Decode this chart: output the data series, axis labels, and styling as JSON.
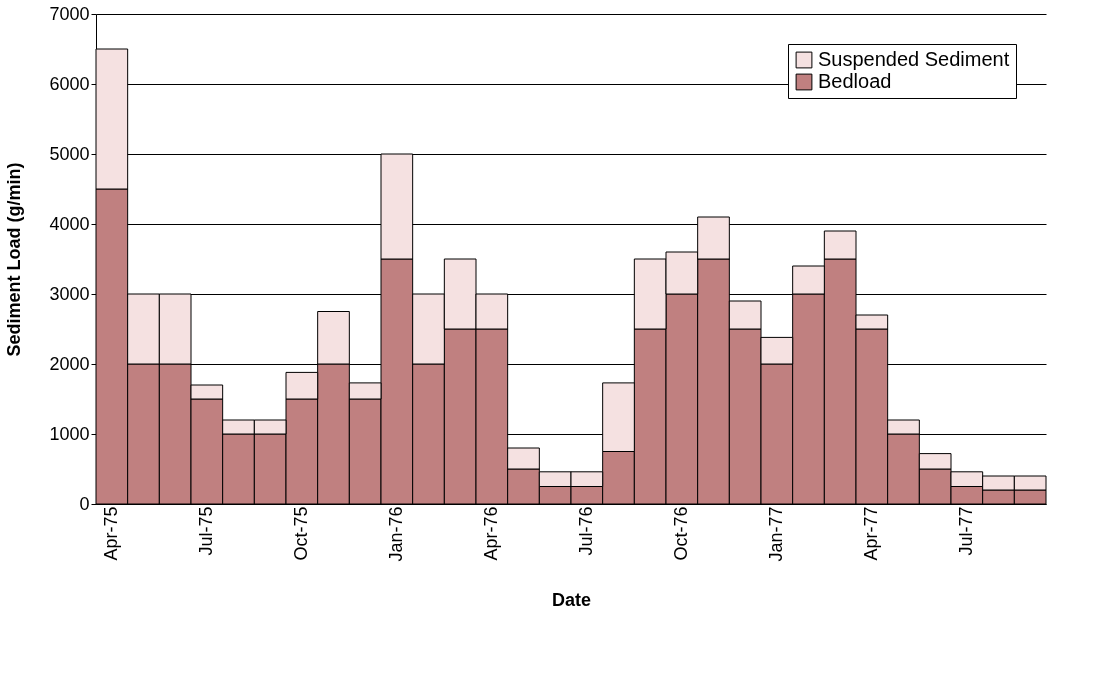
{
  "chart_data": {
    "type": "bar",
    "stacked": true,
    "xlabel": "Date",
    "ylabel": "Sediment Load (g/min)",
    "categories": [
      "Apr-75",
      null,
      null,
      "Jul-75",
      null,
      null,
      "Oct-75",
      null,
      null,
      "Jan-76",
      null,
      null,
      "Apr-76",
      null,
      null,
      "Jul-76",
      null,
      null,
      "Oct-76",
      null,
      null,
      "Jan-77",
      null,
      null,
      "Apr-77",
      null,
      null,
      "Jul-77",
      null,
      null
    ],
    "series": [
      {
        "name": "Bedload",
        "color": "#c08080",
        "values": [
          4500,
          2000,
          2000,
          1500,
          1000,
          1000,
          1500,
          2000,
          1500,
          3500,
          2000,
          2500,
          2500,
          500,
          250,
          250,
          750,
          2500,
          3000,
          3500,
          2500,
          2000,
          3000,
          3500,
          2500,
          1000,
          500,
          250,
          200,
          200
        ]
      },
      {
        "name": "Suspended Sediment",
        "color": "#f5e1e1",
        "values": [
          2000,
          1000,
          1000,
          200,
          200,
          200,
          380,
          750,
          230,
          1500,
          1000,
          1000,
          500,
          300,
          210,
          210,
          980,
          1000,
          600,
          600,
          400,
          380,
          400,
          400,
          200,
          200,
          220,
          210,
          200,
          200
        ]
      }
    ],
    "ylim": [
      0,
      7000
    ],
    "yticks": [
      0,
      1000,
      2000,
      3000,
      4000,
      5000,
      6000,
      7000
    ],
    "grid": "y",
    "legend": "top right"
  }
}
